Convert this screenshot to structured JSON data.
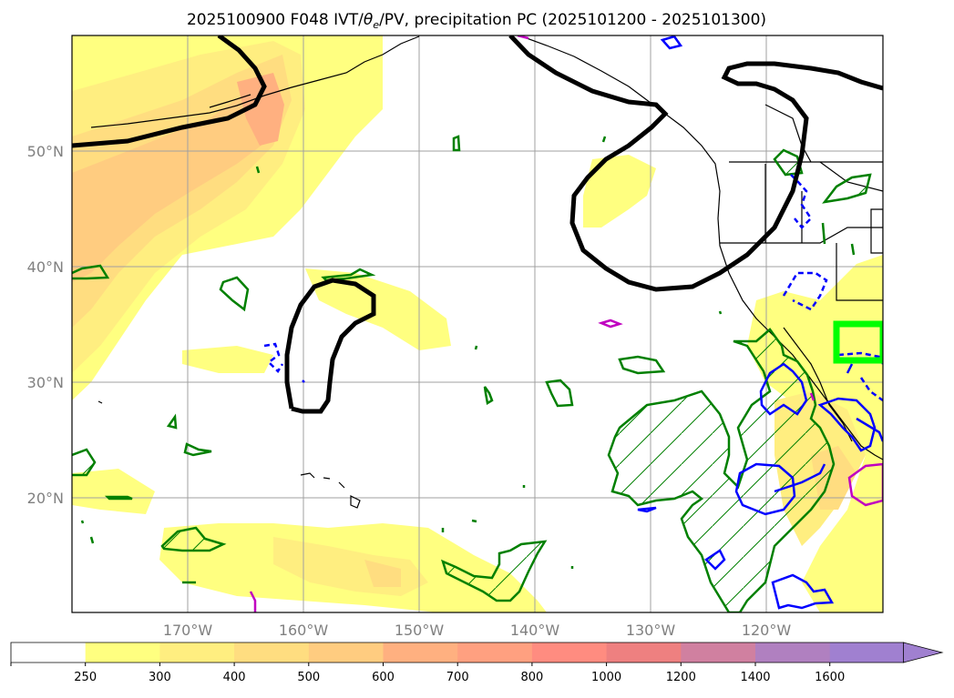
{
  "title": "2025100900 F048 IVT/θe/PV, precipitation PC (2025101200 - 2025101300)",
  "title_parts": {
    "prefix": "2025100900 F048 IVT/",
    "theta": "θ",
    "sub": "e",
    "suffix": "/PV, precipitation PC (2025101200 - 2025101300)"
  },
  "map": {
    "projection": "PlateCarree",
    "lon_range": [
      -180,
      -110
    ],
    "lat_range": [
      10,
      60
    ],
    "grid": true,
    "lat_ticks": [
      {
        "value": 50,
        "label": "50°N"
      },
      {
        "value": 40,
        "label": "40°N"
      },
      {
        "value": 30,
        "label": "30°N"
      },
      {
        "value": 20,
        "label": "20°N"
      }
    ],
    "lon_ticks": [
      {
        "value": -170,
        "label": "170°W"
      },
      {
        "value": -160,
        "label": "160°W"
      },
      {
        "value": -150,
        "label": "150°W"
      },
      {
        "value": -140,
        "label": "140°W"
      },
      {
        "value": -130,
        "label": "130°W"
      },
      {
        "value": -120,
        "label": "120°W"
      }
    ],
    "highlight_box": {
      "lon": [
        -114,
        -110
      ],
      "lat": [
        32,
        35
      ],
      "color": "#00ff00"
    }
  },
  "colorbar": {
    "extend": "max",
    "levels": [
      "250",
      "300",
      "400",
      "500",
      "600",
      "700",
      "800",
      "1000",
      "1200",
      "1400",
      "1600"
    ],
    "colors": [
      "#ffffff",
      "#ffff80",
      "#ffee80",
      "#ffdd80",
      "#ffcc80",
      "#ffb080",
      "#ffa080",
      "#ff8c80",
      "#ee8080",
      "#d080a0",
      "#b080c0",
      "#a080d0"
    ]
  },
  "colors": {
    "pv_contour": "#000000",
    "precip_pos": "#008000",
    "precip_neg": "#0000ff",
    "magenta": "#c000c0",
    "land_outline": "#000000"
  }
}
